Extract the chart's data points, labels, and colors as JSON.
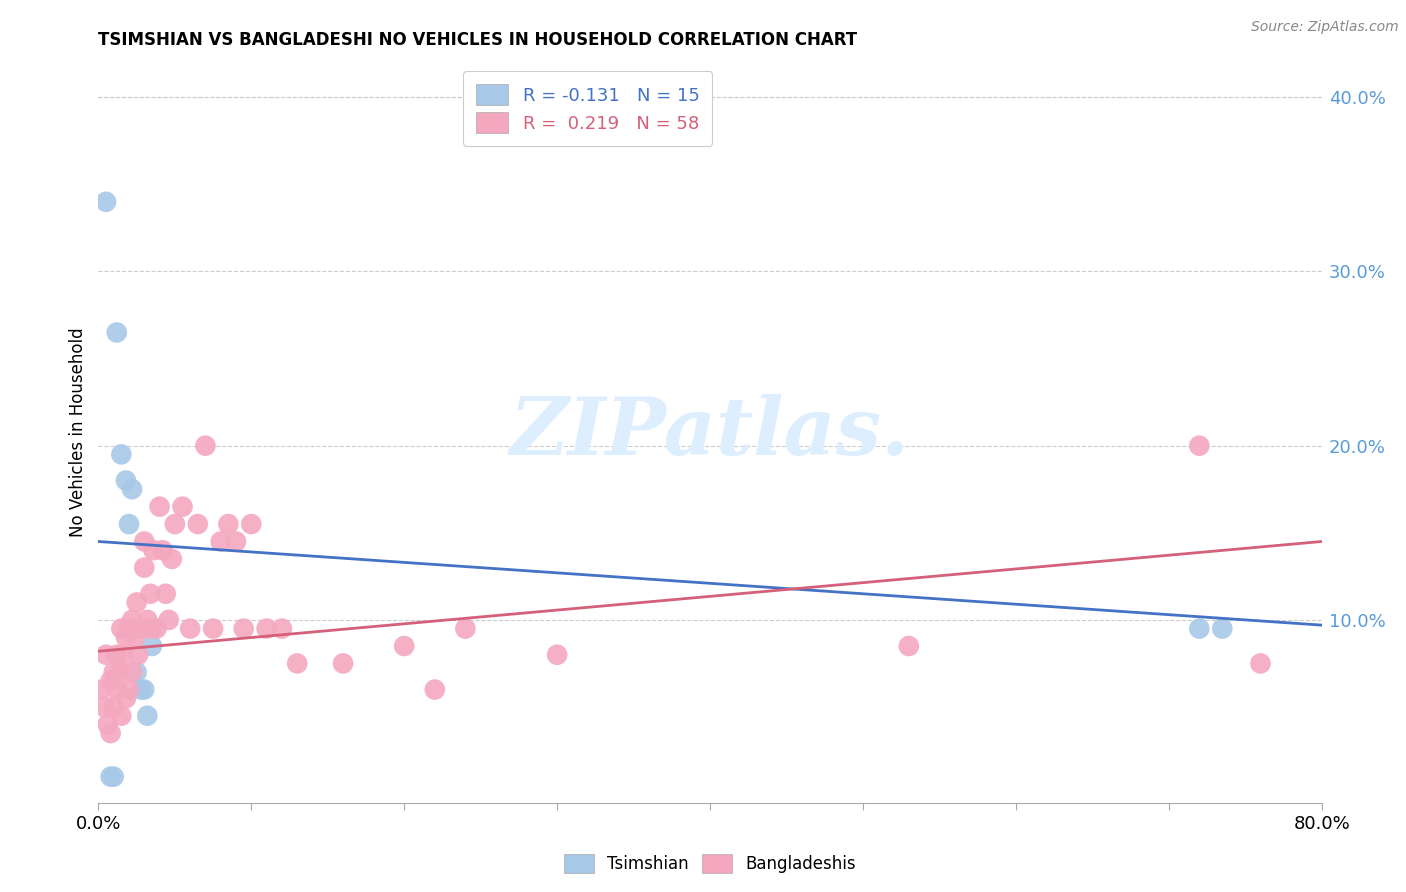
{
  "title": "TSIMSHIAN VS BANGLADESHI NO VEHICLES IN HOUSEHOLD CORRELATION CHART",
  "source": "Source: ZipAtlas.com",
  "ylabel": "No Vehicles in Household",
  "xlim": [
    0.0,
    0.8
  ],
  "ylim": [
    -0.005,
    0.42
  ],
  "right_yticks": [
    0.1,
    0.2,
    0.3,
    0.4
  ],
  "right_ytick_labels": [
    "10.0%",
    "20.0%",
    "30.0%",
    "40.0%"
  ],
  "tsimshian_color": "#a8c8e8",
  "bangladeshi_color": "#f4a8c0",
  "trend_blue": "#4472c4",
  "trend_pink": "#d4607a",
  "watermark_color": "#ddeeff",
  "tsimshian_x": [
    0.005,
    0.008,
    0.01,
    0.012,
    0.015,
    0.018,
    0.02,
    0.022,
    0.025,
    0.028,
    0.03,
    0.032,
    0.035,
    0.72,
    0.735
  ],
  "tsimshian_y": [
    0.34,
    0.01,
    0.01,
    0.265,
    0.195,
    0.18,
    0.155,
    0.175,
    0.07,
    0.06,
    0.06,
    0.045,
    0.085,
    0.095,
    0.095
  ],
  "bangladeshi_x": [
    0.002,
    0.004,
    0.005,
    0.006,
    0.008,
    0.008,
    0.01,
    0.01,
    0.012,
    0.012,
    0.014,
    0.015,
    0.015,
    0.016,
    0.018,
    0.018,
    0.02,
    0.02,
    0.022,
    0.022,
    0.024,
    0.025,
    0.026,
    0.028,
    0.03,
    0.03,
    0.032,
    0.034,
    0.035,
    0.036,
    0.038,
    0.04,
    0.042,
    0.044,
    0.046,
    0.048,
    0.05,
    0.055,
    0.06,
    0.065,
    0.07,
    0.075,
    0.08,
    0.085,
    0.09,
    0.095,
    0.1,
    0.11,
    0.12,
    0.13,
    0.16,
    0.2,
    0.22,
    0.24,
    0.3,
    0.53,
    0.72,
    0.76
  ],
  "bangladeshi_y": [
    0.06,
    0.05,
    0.08,
    0.04,
    0.065,
    0.035,
    0.07,
    0.05,
    0.08,
    0.06,
    0.07,
    0.095,
    0.045,
    0.08,
    0.09,
    0.055,
    0.095,
    0.06,
    0.1,
    0.07,
    0.09,
    0.11,
    0.08,
    0.095,
    0.145,
    0.13,
    0.1,
    0.115,
    0.095,
    0.14,
    0.095,
    0.165,
    0.14,
    0.115,
    0.1,
    0.135,
    0.155,
    0.165,
    0.095,
    0.155,
    0.2,
    0.095,
    0.145,
    0.155,
    0.145,
    0.095,
    0.155,
    0.095,
    0.095,
    0.075,
    0.075,
    0.085,
    0.06,
    0.095,
    0.08,
    0.085,
    0.2,
    0.075
  ],
  "trend_blue_x0": 0.0,
  "trend_blue_y0": 0.145,
  "trend_blue_x1": 0.8,
  "trend_blue_y1": 0.097,
  "trend_pink_x0": 0.0,
  "trend_pink_y0": 0.082,
  "trend_pink_x1": 0.8,
  "trend_pink_y1": 0.145
}
